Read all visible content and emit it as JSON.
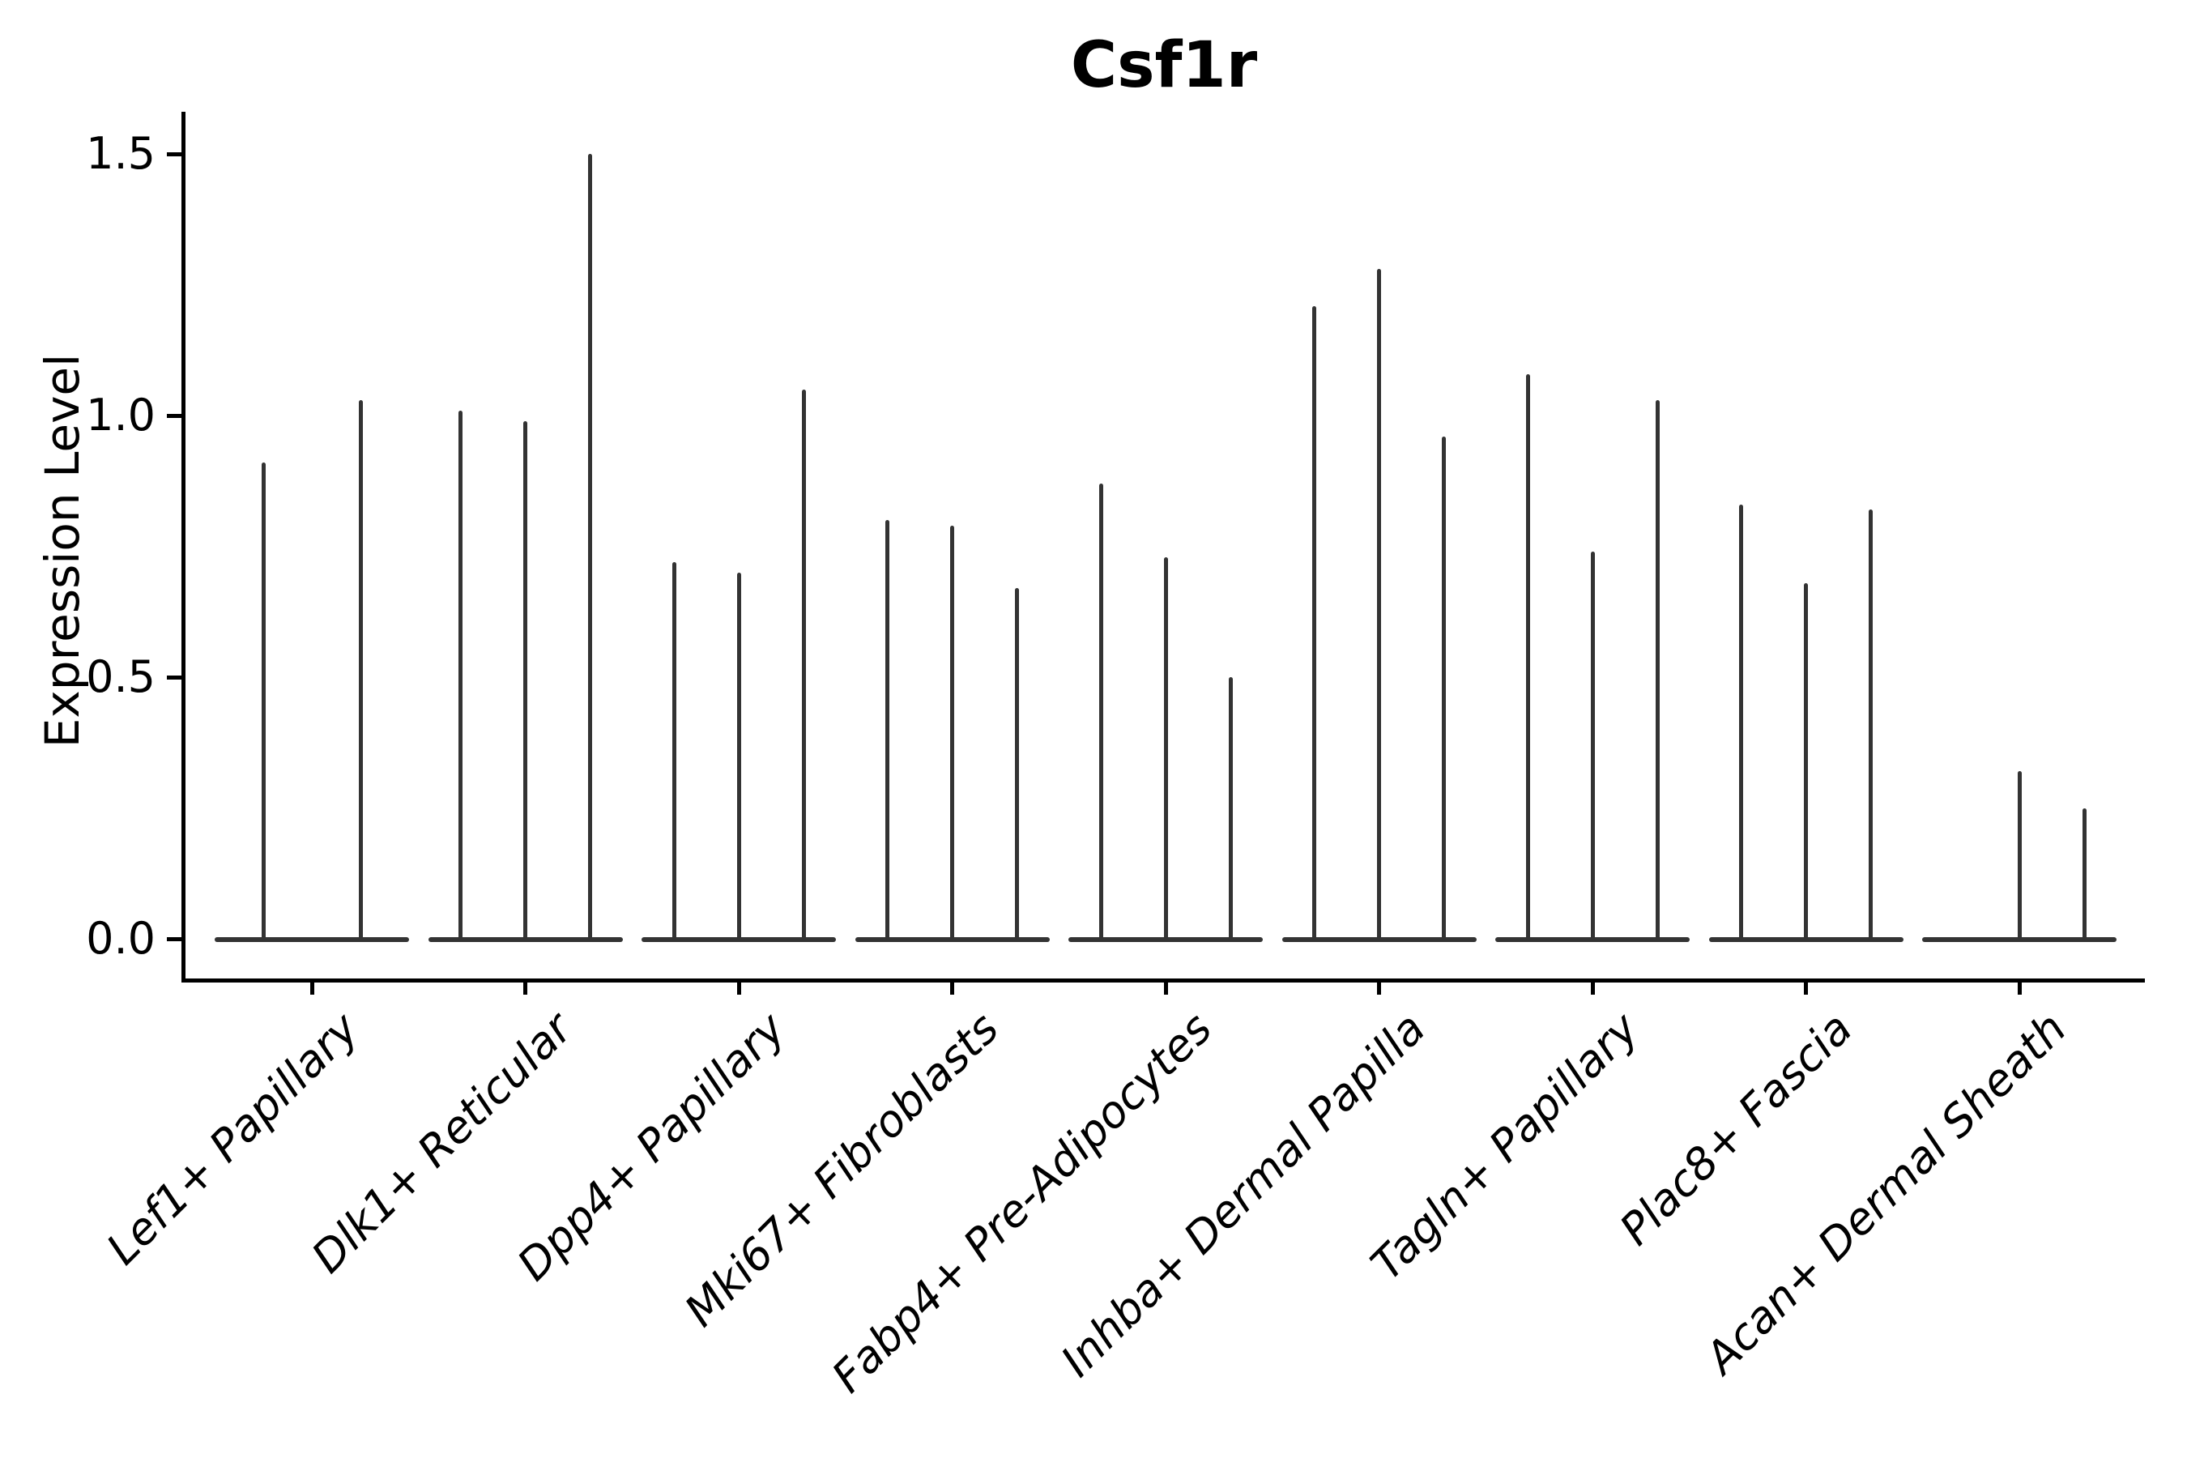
{
  "chart_data": {
    "type": "violin",
    "title": "Csf1r",
    "ylabel": "Expression Level",
    "xlabel": "",
    "ytick_labels": [
      "0.0",
      "0.5",
      "1.0",
      "1.5"
    ],
    "ytick_values": [
      0.0,
      0.5,
      1.0,
      1.5
    ],
    "ylim": [
      -0.08,
      1.58
    ],
    "grid": false,
    "legend": "none",
    "categories": [
      "Lef1+ Papillary",
      "Dlk1+ Reticular",
      "Dpp4+ Papillary",
      "Mki67+ Fibroblasts",
      "Fabp4+ Pre-Adipocytes",
      "Inhba+ Dermal Papilla",
      "Tagln+ Papillary",
      "Plac8+ Fascia",
      "Acan+ Dermal Sheath"
    ],
    "groups": [
      {
        "category": "Lef1+ Papillary",
        "violin_maxima": [
          0.91,
          1.03
        ]
      },
      {
        "category": "Dlk1+ Reticular",
        "violin_maxima": [
          1.01,
          0.99,
          1.5
        ]
      },
      {
        "category": "Dpp4+ Papillary",
        "violin_maxima": [
          0.72,
          0.7,
          1.05
        ]
      },
      {
        "category": "Mki67+ Fibroblasts",
        "violin_maxima": [
          0.8,
          0.79,
          0.67
        ]
      },
      {
        "category": "Fabp4+ Pre-Adipocytes",
        "violin_maxima": [
          0.87,
          0.73,
          0.5
        ]
      },
      {
        "category": "Inhba+ Dermal Papilla",
        "violin_maxima": [
          1.21,
          1.28,
          0.96
        ]
      },
      {
        "category": "Tagln+ Papillary",
        "violin_maxima": [
          1.08,
          0.74,
          1.03
        ]
      },
      {
        "category": "Plac8+ Fascia",
        "violin_maxima": [
          0.83,
          0.68,
          0.82
        ]
      },
      {
        "category": "Acan+ Dermal Sheath",
        "violin_maxima": [
          0.0,
          0.32,
          0.25
        ]
      }
    ],
    "violin_color": "#333333",
    "axis_color": "#000000",
    "background_color": "#ffffff"
  }
}
